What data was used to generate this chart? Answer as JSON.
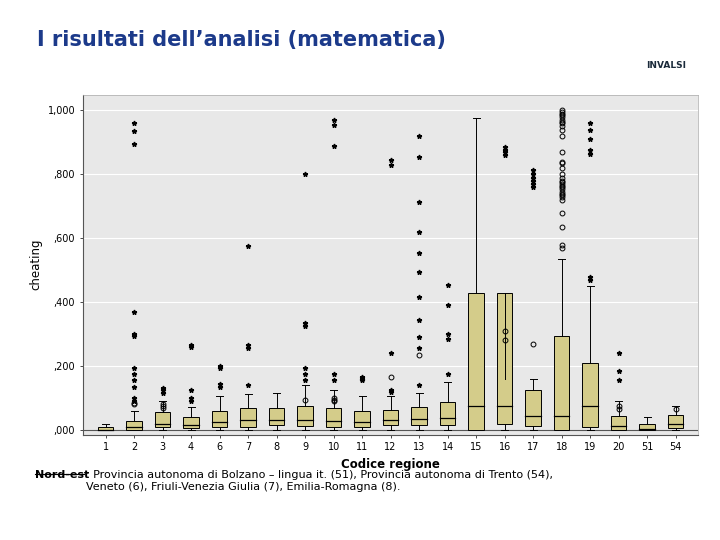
{
  "title": "I risultati dell’analisi (matematica)",
  "xlabel": "Codice regione",
  "ylabel": "cheating",
  "slide_bg": "#f5f5f5",
  "plot_bg": "#e8e8e8",
  "box_face": "#d4cc8a",
  "box_edge": "#000000",
  "ylim": [
    -0.015,
    1.05
  ],
  "yticks": [
    0.0,
    0.2,
    0.4,
    0.6,
    0.8,
    1.0
  ],
  "ytick_labels": [
    ",000",
    ",200",
    ",400",
    ",600",
    ",800",
    "1,000"
  ],
  "regions": [
    1,
    2,
    3,
    4,
    6,
    7,
    8,
    9,
    10,
    11,
    12,
    13,
    14,
    15,
    16,
    17,
    18,
    19,
    20,
    51,
    54
  ],
  "caption_bold": "Nord-est",
  "caption_normal": ": Provincia autonoma di Bolzano – lingua it. (51), Provincia autonoma di Trento (54),\nVeneto (6), Friuli-Venezia Giulia (7), Emilia-Romagna (8).",
  "title_color": "#1c3a8a",
  "accent_color": "#2244aa",
  "invalsi_bg": "#8faabf",
  "invalsi_text": "#1a2a3a",
  "boxes": {
    "1": {
      "q1": 0.0,
      "med": 0.0,
      "q3": 0.01,
      "whislo": 0.0,
      "whishi": 0.02,
      "fliers_star": [],
      "fliers_circ": []
    },
    "2": {
      "q1": 0.0,
      "med": 0.01,
      "q3": 0.028,
      "whislo": 0.0,
      "whishi": 0.06,
      "fliers_star": [
        0.09,
        0.1,
        0.135,
        0.155,
        0.175,
        0.195,
        0.295,
        0.3,
        0.37,
        0.895,
        0.935,
        0.96
      ],
      "fliers_circ": [
        0.08,
        0.085
      ]
    },
    "3": {
      "q1": 0.01,
      "med": 0.02,
      "q3": 0.055,
      "whislo": 0.0,
      "whishi": 0.09,
      "fliers_star": [
        0.115,
        0.125,
        0.13
      ],
      "fliers_circ": [
        0.07,
        0.075,
        0.08
      ]
    },
    "4": {
      "q1": 0.005,
      "med": 0.015,
      "q3": 0.04,
      "whislo": 0.0,
      "whishi": 0.072,
      "fliers_star": [
        0.09,
        0.1,
        0.125,
        0.26,
        0.265
      ],
      "fliers_circ": []
    },
    "6": {
      "q1": 0.01,
      "med": 0.025,
      "q3": 0.06,
      "whislo": 0.0,
      "whishi": 0.105,
      "fliers_star": [
        0.135,
        0.145,
        0.195,
        0.2
      ],
      "fliers_circ": []
    },
    "7": {
      "q1": 0.01,
      "med": 0.03,
      "q3": 0.068,
      "whislo": 0.0,
      "whishi": 0.112,
      "fliers_star": [
        0.14,
        0.255,
        0.265,
        0.575
      ],
      "fliers_circ": []
    },
    "8": {
      "q1": 0.015,
      "med": 0.03,
      "q3": 0.068,
      "whislo": 0.0,
      "whishi": 0.115,
      "fliers_star": [],
      "fliers_circ": []
    },
    "9": {
      "q1": 0.012,
      "med": 0.03,
      "q3": 0.075,
      "whislo": 0.0,
      "whishi": 0.14,
      "fliers_star": [
        0.155,
        0.175,
        0.195,
        0.325,
        0.335,
        0.8
      ],
      "fliers_circ": [
        0.095
      ]
    },
    "10": {
      "q1": 0.01,
      "med": 0.028,
      "q3": 0.07,
      "whislo": 0.0,
      "whishi": 0.125,
      "fliers_star": [
        0.155,
        0.175,
        0.89,
        0.955,
        0.97
      ],
      "fliers_circ": [
        0.09,
        0.095,
        0.1
      ]
    },
    "11": {
      "q1": 0.01,
      "med": 0.025,
      "q3": 0.058,
      "whislo": 0.0,
      "whishi": 0.105,
      "fliers_star": [
        0.155,
        0.16,
        0.165
      ],
      "fliers_circ": []
    },
    "12": {
      "q1": 0.015,
      "med": 0.03,
      "q3": 0.062,
      "whislo": 0.0,
      "whishi": 0.105,
      "fliers_star": [
        0.12,
        0.125,
        0.24,
        0.83,
        0.845
      ],
      "fliers_circ": [
        0.165
      ]
    },
    "13": {
      "q1": 0.015,
      "med": 0.035,
      "q3": 0.072,
      "whislo": 0.0,
      "whishi": 0.115,
      "fliers_star": [
        0.14,
        0.255,
        0.29,
        0.345,
        0.415,
        0.495,
        0.555,
        0.62,
        0.715,
        0.855,
        0.92
      ],
      "fliers_circ": [
        0.235
      ]
    },
    "14": {
      "q1": 0.015,
      "med": 0.038,
      "q3": 0.088,
      "whislo": 0.0,
      "whishi": 0.15,
      "fliers_star": [
        0.175,
        0.285,
        0.3,
        0.39,
        0.455
      ],
      "fliers_circ": []
    },
    "15": {
      "q1": 0.0,
      "med": 0.075,
      "q3": 0.43,
      "whislo": 0.0,
      "whishi": 0.975,
      "fliers_star": [],
      "fliers_circ": []
    },
    "16": {
      "q1": 0.018,
      "med": 0.075,
      "q3": 0.43,
      "whislo": 0.0,
      "whishi": 0.16,
      "fliers_star": [
        0.86,
        0.87,
        0.875,
        0.885
      ],
      "fliers_circ": [
        0.28,
        0.31
      ]
    },
    "17": {
      "q1": 0.012,
      "med": 0.045,
      "q3": 0.125,
      "whislo": 0.0,
      "whishi": 0.16,
      "fliers_star": [
        0.76,
        0.77,
        0.78,
        0.79,
        0.8,
        0.815
      ],
      "fliers_circ": [
        0.27
      ]
    },
    "18": {
      "q1": 0.0,
      "med": 0.045,
      "q3": 0.295,
      "whislo": 0.0,
      "whishi": 0.535,
      "fliers_star": [],
      "fliers_circ": [
        0.57,
        0.58,
        0.635,
        0.68,
        0.72,
        0.73,
        0.735,
        0.74,
        0.745,
        0.755,
        0.76,
        0.765,
        0.77,
        0.775,
        0.78,
        0.79,
        0.8,
        0.82,
        0.835,
        0.84,
        0.87,
        0.92,
        0.94,
        0.95,
        0.96,
        0.965,
        0.97,
        0.98,
        0.985,
        0.99,
        0.995,
        1.0
      ]
    },
    "19": {
      "q1": 0.008,
      "med": 0.075,
      "q3": 0.21,
      "whislo": 0.0,
      "whishi": 0.45,
      "fliers_star": [
        0.47,
        0.48,
        0.865,
        0.875,
        0.91,
        0.94,
        0.96
      ],
      "fliers_circ": []
    },
    "20": {
      "q1": 0.0,
      "med": 0.012,
      "q3": 0.042,
      "whislo": 0.0,
      "whishi": 0.09,
      "fliers_star": [
        0.155,
        0.185,
        0.24
      ],
      "fliers_circ": [
        0.065,
        0.075
      ]
    },
    "51": {
      "q1": 0.0,
      "med": 0.004,
      "q3": 0.018,
      "whislo": 0.0,
      "whishi": 0.04,
      "fliers_star": [],
      "fliers_circ": []
    },
    "54": {
      "q1": 0.005,
      "med": 0.018,
      "q3": 0.048,
      "whislo": 0.0,
      "whishi": 0.075,
      "fliers_star": [],
      "fliers_circ": [
        0.065
      ]
    }
  }
}
